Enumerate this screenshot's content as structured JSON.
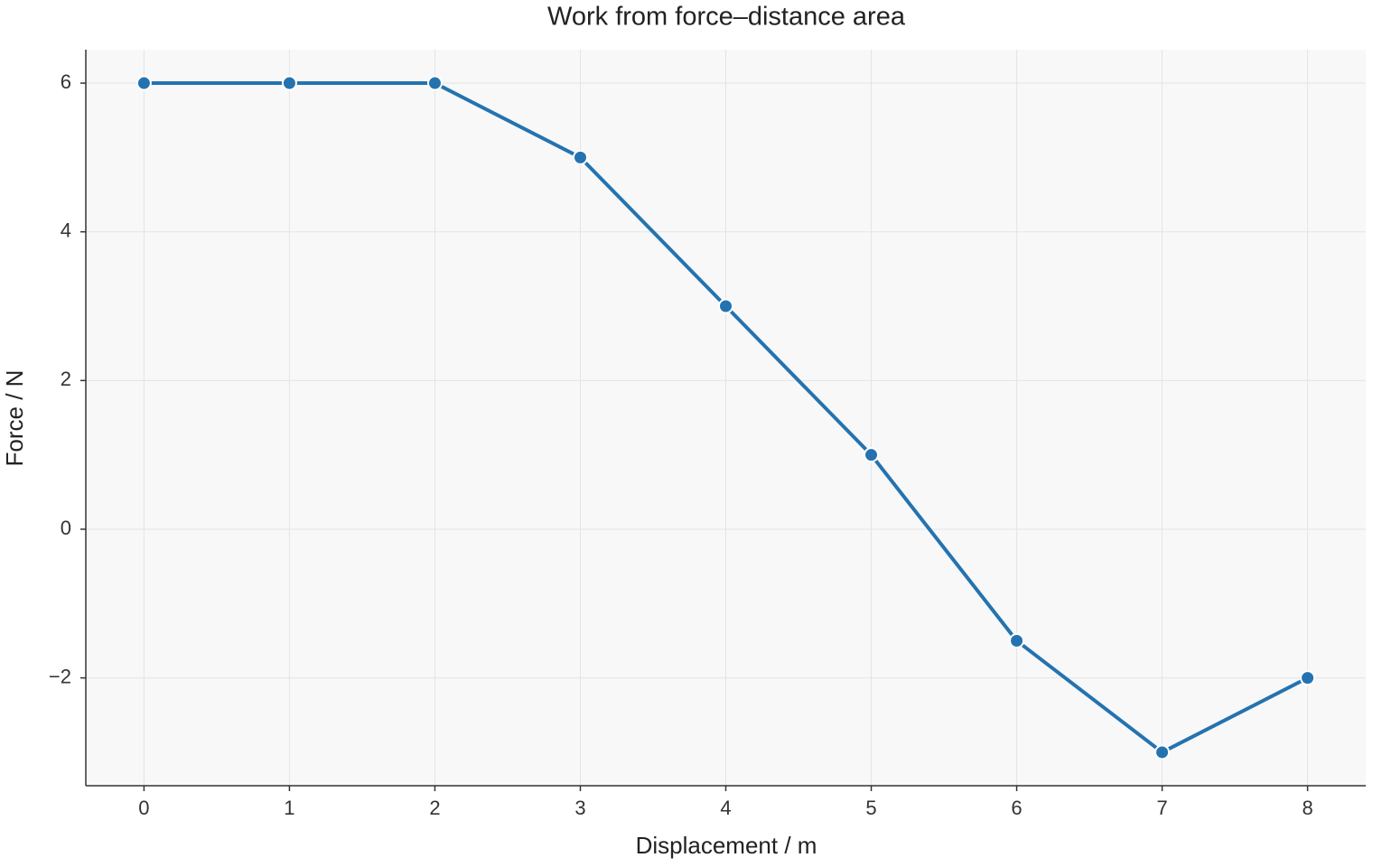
{
  "chart_data": {
    "type": "line",
    "title": "Work from force–distance area",
    "x_label": "Displacement / m",
    "y_label": "Force / N",
    "x": [
      0,
      1,
      2,
      3,
      4,
      5,
      6,
      7,
      8
    ],
    "series": [
      {
        "color": "#2473b0",
        "values": [
          6,
          6,
          6,
          5,
          3,
          1,
          -1.5,
          -3,
          -2
        ]
      }
    ],
    "xlim": [
      -0.4,
      8.4
    ],
    "ylim": [
      -3.45,
      6.45
    ],
    "xticks": [
      0,
      1,
      2,
      3,
      4,
      5,
      6,
      7,
      8
    ],
    "yticks": [
      {
        "value": -2,
        "label": "−2"
      },
      0,
      2,
      4,
      6
    ],
    "grid": true
  }
}
